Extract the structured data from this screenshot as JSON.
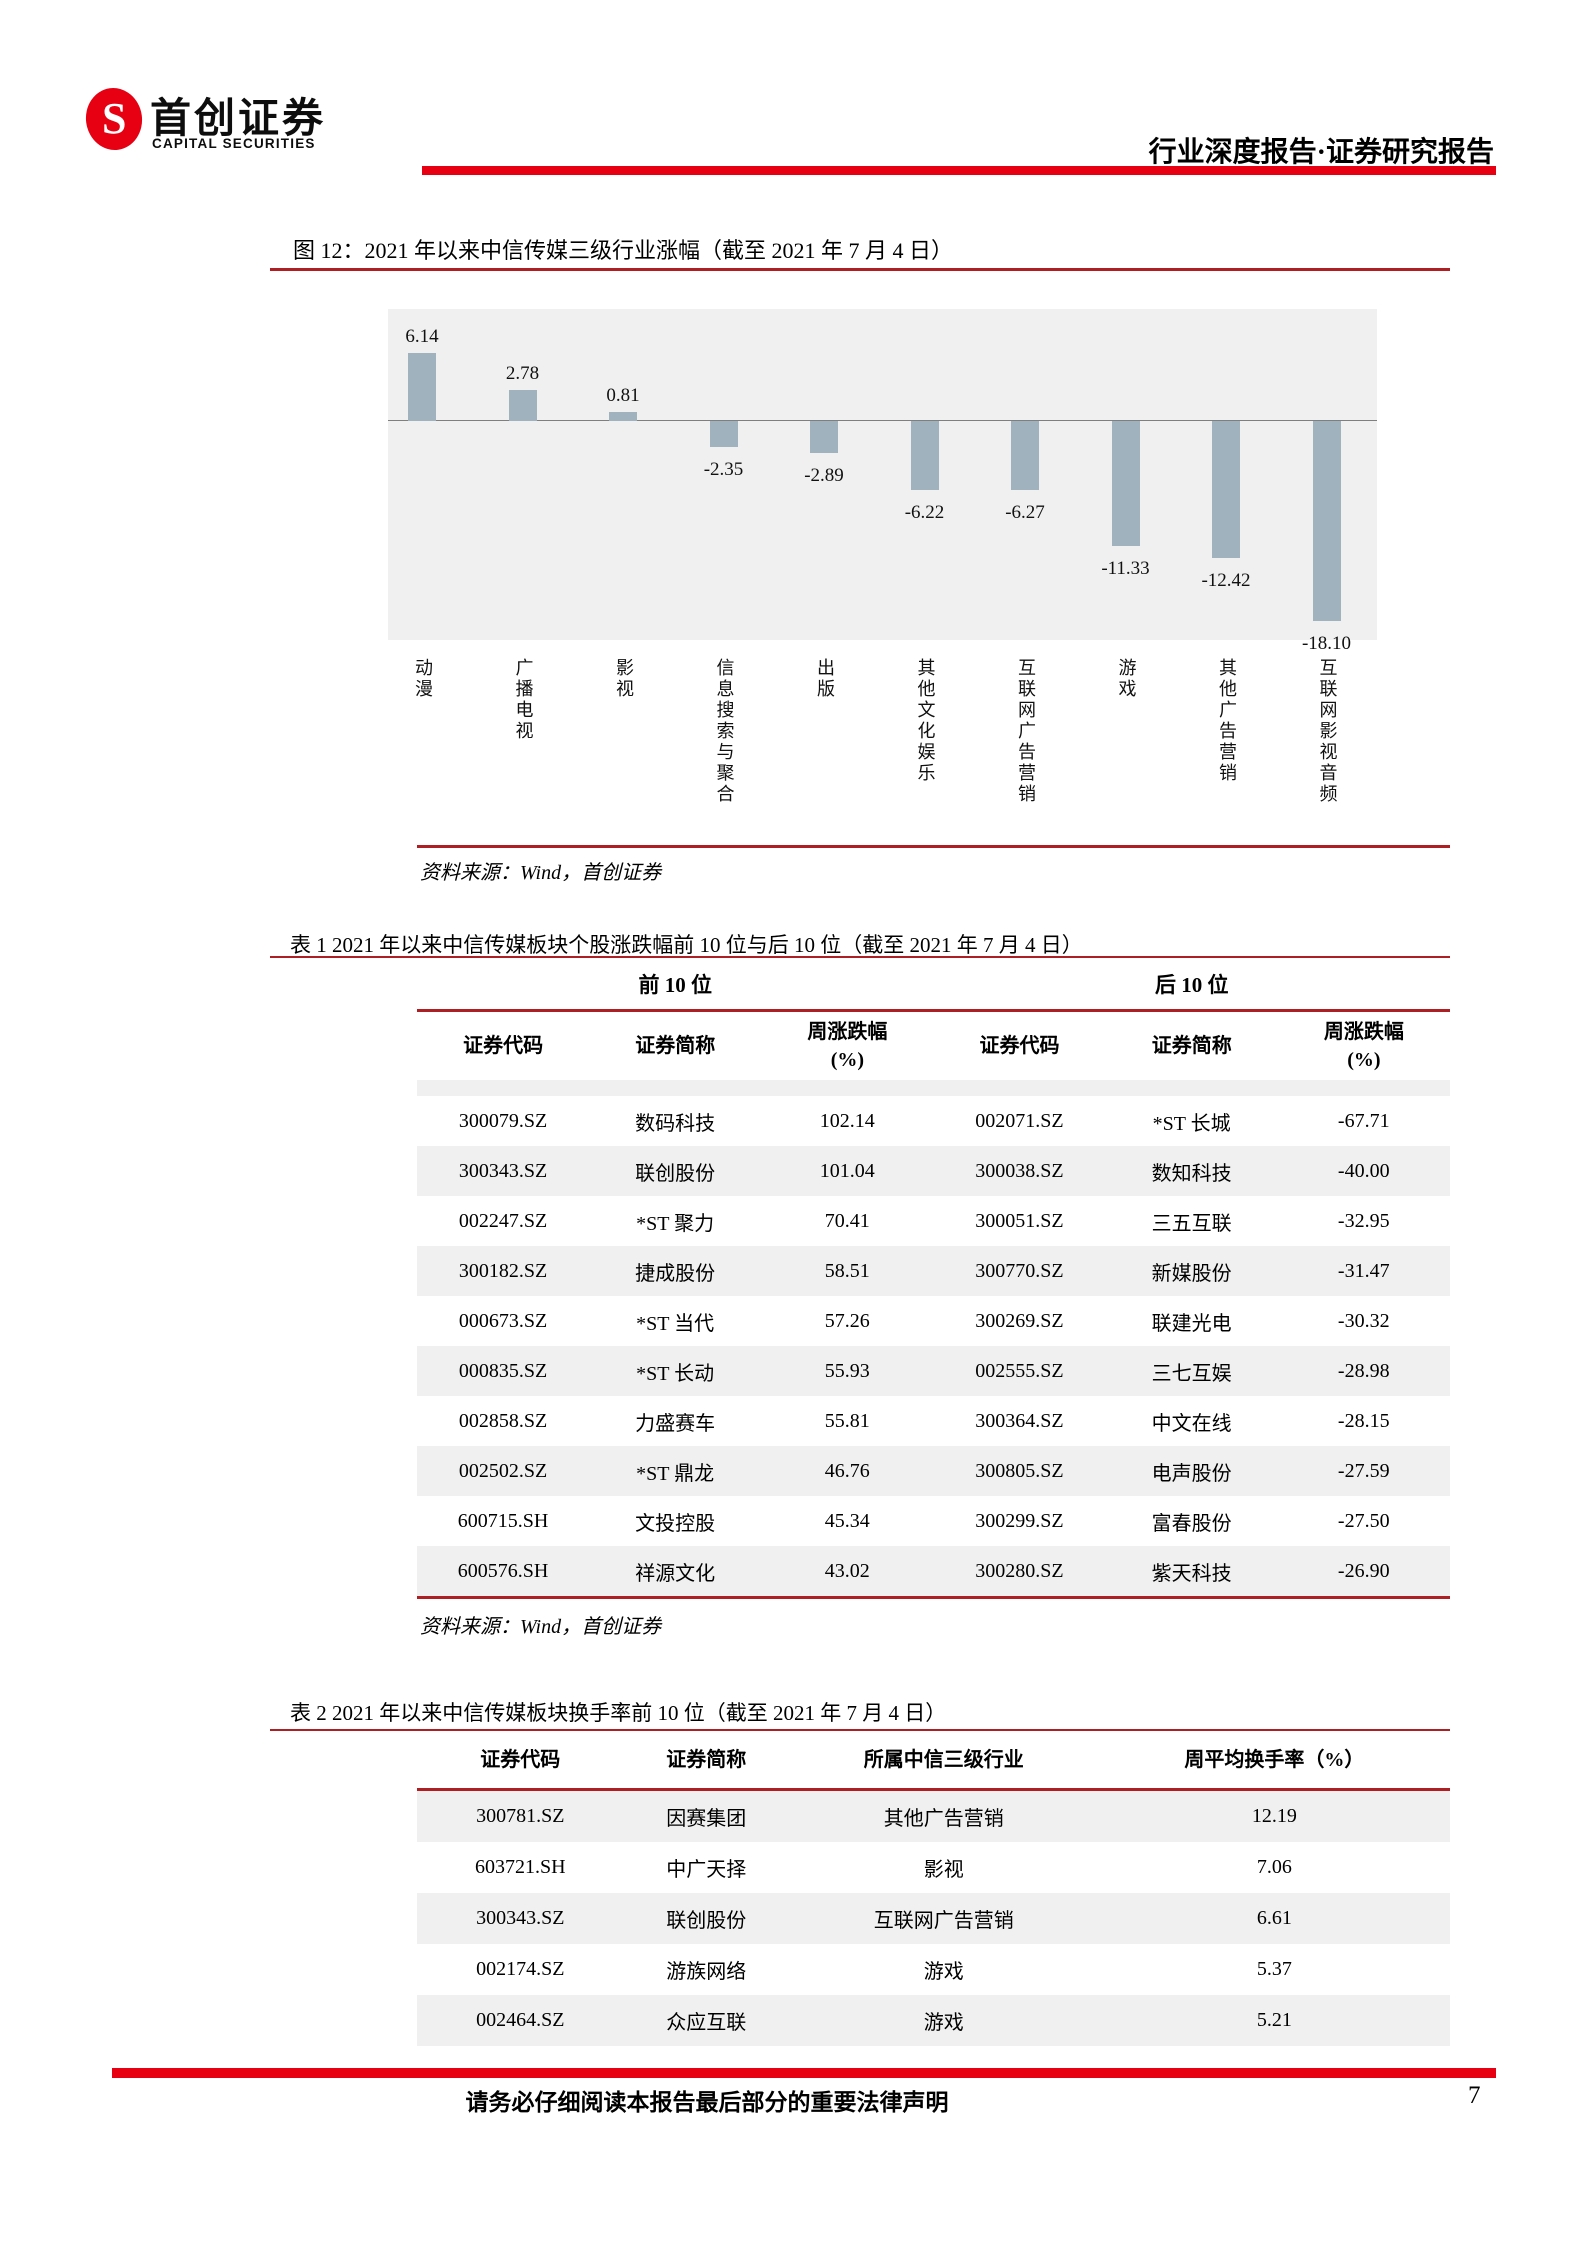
{
  "colors": {
    "accent_red": "#e60012",
    "rule_red": "#ad1f23"
  },
  "brand": {
    "logo_letter": "S",
    "name_cn": "首创证券",
    "name_en": "CAPITAL SECURITIES"
  },
  "header": {
    "right_text": "行业深度报告·证券研究报告"
  },
  "figure": {
    "title": "图 12：2021 年以来中信传媒三级行业涨幅（截至 2021 年 7 月 4 日）",
    "source": "资料来源：Wind，首创证券"
  },
  "chart_data": {
    "type": "bar",
    "title": "2021 年以来中信传媒三级行业涨幅（截至 2021 年 7 月 4 日）",
    "categories": [
      "动漫",
      "广播电视",
      "影视",
      "信息搜索与聚合",
      "出版",
      "其他文化娱乐",
      "互联网广告营销",
      "游戏",
      "其他广告营销",
      "互联网影视音频"
    ],
    "values": [
      6.14,
      2.78,
      0.81,
      -2.35,
      -2.89,
      -6.22,
      -6.27,
      -11.33,
      -12.42,
      -18.1
    ],
    "value_labels": [
      "6.14",
      "2.78",
      "0.81",
      "-2.35",
      "-2.89",
      "-6.22",
      "-6.27",
      "-11.33",
      "-12.42",
      "-18.10"
    ],
    "xlabel": "",
    "ylabel": "",
    "ylim": [
      -21,
      10
    ],
    "grid": false,
    "legend_position": "none",
    "bar_color": "#9fb2bd",
    "plot_bg": "#f0f0f0"
  },
  "table1": {
    "title": "表 1 2021 年以来中信传媒板块个股涨跌幅前 10 位与后 10 位（截至 2021 年 7 月 4 日）",
    "group_headers": [
      "前 10 位",
      "后 10 位"
    ],
    "columns": [
      "证券代码",
      "证券简称",
      "周涨跌幅\n(%)",
      "证券代码",
      "证券简称",
      "周涨跌幅\n(%)"
    ],
    "rows": [
      [
        "300079.SZ",
        "数码科技",
        "102.14",
        "002071.SZ",
        "*ST 长城",
        "-67.71"
      ],
      [
        "300343.SZ",
        "联创股份",
        "101.04",
        "300038.SZ",
        "数知科技",
        "-40.00"
      ],
      [
        "002247.SZ",
        "*ST 聚力",
        "70.41",
        "300051.SZ",
        "三五互联",
        "-32.95"
      ],
      [
        "300182.SZ",
        "捷成股份",
        "58.51",
        "300770.SZ",
        "新媒股份",
        "-31.47"
      ],
      [
        "000673.SZ",
        "*ST 当代",
        "57.26",
        "300269.SZ",
        "联建光电",
        "-30.32"
      ],
      [
        "000835.SZ",
        "*ST 长动",
        "55.93",
        "002555.SZ",
        "三七互娱",
        "-28.98"
      ],
      [
        "002858.SZ",
        "力盛赛车",
        "55.81",
        "300364.SZ",
        "中文在线",
        "-28.15"
      ],
      [
        "002502.SZ",
        "*ST 鼎龙",
        "46.76",
        "300805.SZ",
        "电声股份",
        "-27.59"
      ],
      [
        "600715.SH",
        "文投控股",
        "45.34",
        "300299.SZ",
        "富春股份",
        "-27.50"
      ],
      [
        "600576.SH",
        "祥源文化",
        "43.02",
        "300280.SZ",
        "紫天科技",
        "-26.90"
      ]
    ],
    "source": "资料来源：Wind，首创证券"
  },
  "table2": {
    "title": "表 2 2021 年以来中信传媒板块换手率前 10 位（截至 2021 年 7 月 4 日）",
    "columns": [
      "证券代码",
      "证券简称",
      "所属中信三级行业",
      "周平均换手率（%）"
    ],
    "rows": [
      [
        "300781.SZ",
        "因赛集团",
        "其他广告营销",
        "12.19"
      ],
      [
        "603721.SH",
        "中广天择",
        "影视",
        "7.06"
      ],
      [
        "300343.SZ",
        "联创股份",
        "互联网广告营销",
        "6.61"
      ],
      [
        "002174.SZ",
        "游族网络",
        "游戏",
        "5.37"
      ],
      [
        "002464.SZ",
        "众应互联",
        "游戏",
        "5.21"
      ]
    ]
  },
  "footer": {
    "notice": "请务必仔细阅读本报告最后部分的重要法律声明",
    "page_number": "7"
  }
}
